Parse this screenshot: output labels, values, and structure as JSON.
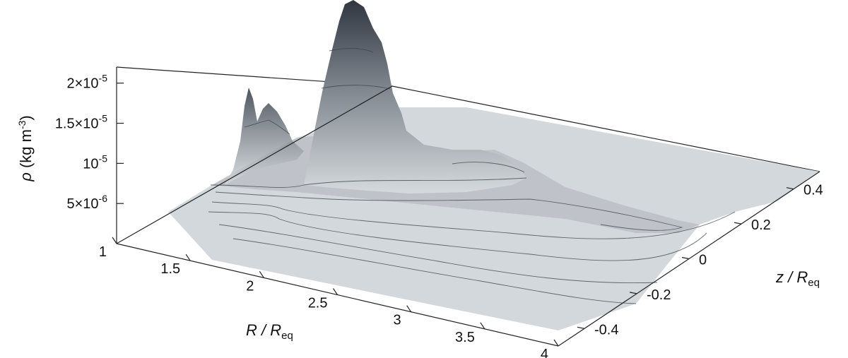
{
  "chart_data": {
    "type": "surface",
    "xlabel": {
      "main": "R / R",
      "sub": "eq"
    },
    "ylabel": {
      "main": "z / R",
      "sub": "eq"
    },
    "zlabel": {
      "sym": "ρ",
      "unit": "(kg m",
      "exp": "-3",
      "close": ")"
    },
    "x_ticks": [
      {
        "value": 1,
        "label": "1"
      },
      {
        "value": 1.5,
        "label": "1.5"
      },
      {
        "value": 2,
        "label": "2"
      },
      {
        "value": 2.5,
        "label": "2.5"
      },
      {
        "value": 3,
        "label": "3"
      },
      {
        "value": 3.5,
        "label": "3.5"
      },
      {
        "value": 4,
        "label": "4"
      }
    ],
    "y_ticks": [
      {
        "value": -0.4,
        "label": "-0.4"
      },
      {
        "value": -0.2,
        "label": "-0.2"
      },
      {
        "value": 0,
        "label": "0"
      },
      {
        "value": 0.2,
        "label": "0.2"
      },
      {
        "value": 0.4,
        "label": "0.4"
      }
    ],
    "z_ticks": [
      {
        "value": 2e-05,
        "mant": "2×10",
        "exp": "-5"
      },
      {
        "value": 1.5e-05,
        "mant": "1.5×10",
        "exp": "-5"
      },
      {
        "value": 1e-05,
        "mant": "10",
        "exp": "-5"
      },
      {
        "value": 5e-06,
        "mant": "5×10",
        "exp": "-6"
      }
    ],
    "xlim": [
      1,
      4
    ],
    "ylim": [
      -0.5,
      0.5
    ],
    "zlim": [
      0,
      2.2e-05
    ],
    "peaks": [
      {
        "R": 1.8,
        "z": 0.32,
        "rho": 2.25e-05
      },
      {
        "R": 1.58,
        "z": -0.05,
        "rho": 1.5e-05
      },
      {
        "R": 1.72,
        "z": 0.05,
        "rho": 1.3e-05
      },
      {
        "R": 2.2,
        "z": 0.25,
        "rho": 5e-06
      }
    ],
    "colors": {
      "low": "#d5dadd",
      "high": "#2f3640",
      "contour": "#3c4048"
    },
    "grid": false
  }
}
